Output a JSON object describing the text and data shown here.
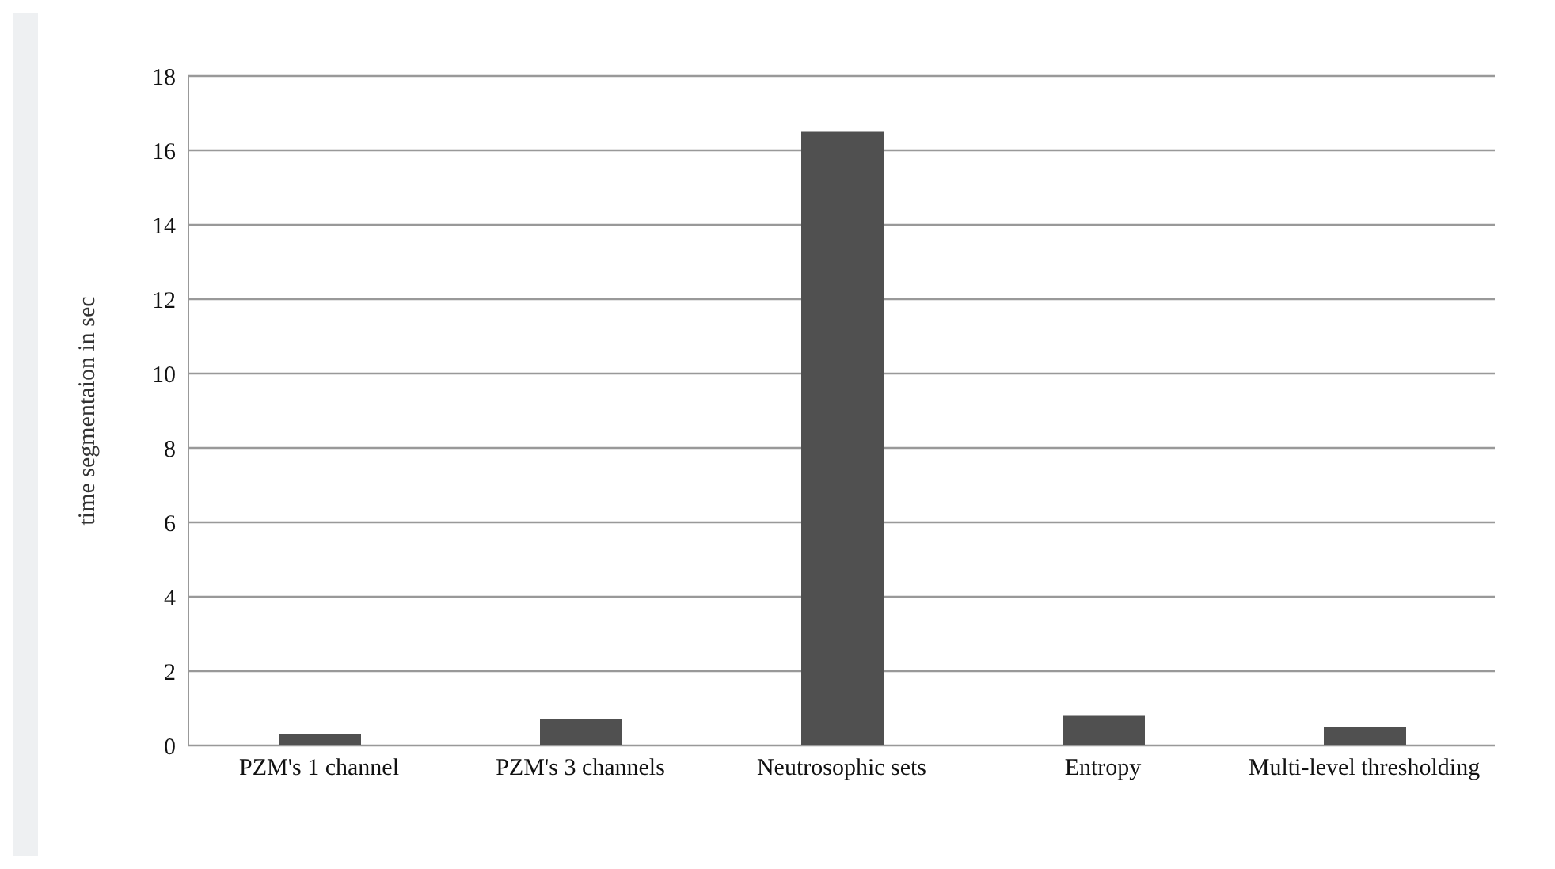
{
  "chart_data": {
    "type": "bar",
    "ylabel": "time segmentaion in sec",
    "categories": [
      "PZM's 1 channel",
      "PZM's 3 channels",
      "Neutrosophic sets",
      "Entropy",
      "Multi-level thresholding"
    ],
    "values": [
      0.3,
      0.7,
      16.5,
      0.8,
      0.5
    ],
    "color": "#505050",
    "ylim": [
      0,
      18
    ],
    "yticks": [
      0,
      2,
      4,
      6,
      8,
      10,
      12,
      14,
      16,
      18
    ],
    "grid": "y"
  }
}
